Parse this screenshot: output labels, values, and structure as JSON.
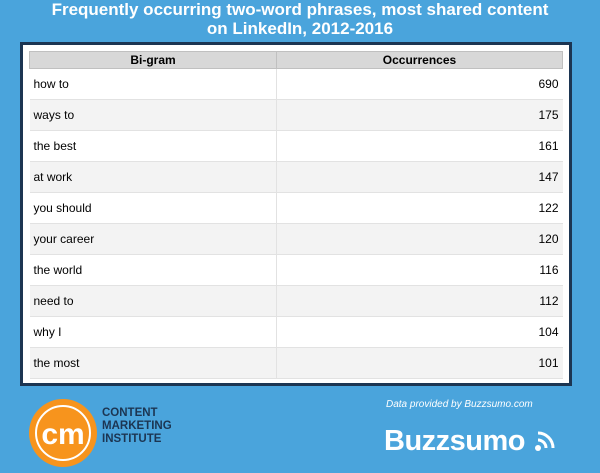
{
  "chart_data": {
    "type": "table",
    "title_lines": [
      "Frequently occurring two-word phrases, most shared content",
      "on LinkedIn, 2012-2016"
    ],
    "columns": [
      "Bi-gram",
      "Occurrences"
    ],
    "rows": [
      [
        "how to",
        "690"
      ],
      [
        "ways to",
        "175"
      ],
      [
        "the best",
        "161"
      ],
      [
        "at work",
        "147"
      ],
      [
        "you should",
        "122"
      ],
      [
        "your career",
        "120"
      ],
      [
        "the world",
        "116"
      ],
      [
        "need to",
        "112"
      ],
      [
        "why I",
        "104"
      ],
      [
        "the most",
        "101"
      ]
    ]
  },
  "footer": {
    "credit": "Data provided by Buzzsumo.com",
    "cmi_logo_mark": "cm",
    "cmi_lines": [
      "CONTENT",
      "MARKETING",
      "INSTITUTE"
    ],
    "buzzsumo_logo": "Buzzsumo"
  },
  "colors": {
    "background": "#4aa4dc",
    "frame": "#1c3552",
    "cmi_orange": "#f7941d"
  }
}
